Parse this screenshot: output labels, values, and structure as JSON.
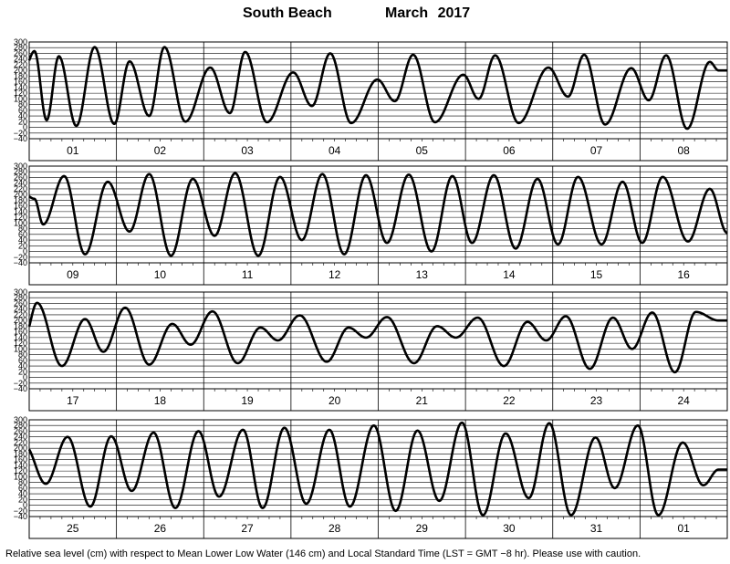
{
  "title": {
    "station": "South Beach",
    "month": "March",
    "year": "2017"
  },
  "footer": "Relative sea level (cm) with respect to Mean Lower Low Water (146 cm) and Local Standard Time (LST = GMT −8 hr). Please use with caution.",
  "chart_data": {
    "type": "line",
    "title": "South Beach March 2017",
    "xlabel": "",
    "ylabel": "",
    "ylim": [
      -40,
      300
    ],
    "yticks": [
      -40,
      -20,
      0,
      20,
      40,
      60,
      80,
      100,
      120,
      140,
      160,
      180,
      200,
      220,
      240,
      260,
      280,
      300
    ],
    "grid": true,
    "days_per_panel": 8,
    "panels": [
      {
        "day_labels": [
          "01",
          "02",
          "03",
          "04",
          "05",
          "06",
          "07",
          "08"
        ],
        "extrema": [
          [
            -0.1,
            210
          ],
          [
            0.12,
            268
          ],
          [
            0.4,
            25
          ],
          [
            0.68,
            250
          ],
          [
            1.08,
            5
          ],
          [
            1.5,
            282
          ],
          [
            1.95,
            12
          ],
          [
            2.3,
            232
          ],
          [
            2.75,
            40
          ],
          [
            3.1,
            282
          ],
          [
            3.58,
            20
          ],
          [
            4.15,
            210
          ],
          [
            4.6,
            50
          ],
          [
            4.95,
            265
          ],
          [
            5.45,
            18
          ],
          [
            6.05,
            193
          ],
          [
            6.48,
            75
          ],
          [
            6.9,
            260
          ],
          [
            7.38,
            15
          ],
          [
            7.98,
            168
          ],
          [
            8.38,
            92
          ],
          [
            8.8,
            255
          ],
          [
            9.3,
            18
          ],
          [
            9.95,
            185
          ],
          [
            10.3,
            100
          ],
          [
            10.68,
            253
          ],
          [
            11.22,
            15
          ],
          [
            11.9,
            210
          ],
          [
            12.35,
            108
          ],
          [
            12.72,
            255
          ],
          [
            13.2,
            10
          ],
          [
            13.8,
            208
          ],
          [
            14.2,
            95
          ],
          [
            14.6,
            253
          ],
          [
            15.08,
            -5
          ],
          [
            15.6,
            230
          ],
          [
            15.8,
            200
          ]
        ]
      },
      {
        "day_labels": [
          "09",
          "10",
          "11",
          "12",
          "13",
          "14",
          "15",
          "16"
        ],
        "extrema": [
          [
            -0.1,
            200
          ],
          [
            0.12,
            185
          ],
          [
            0.32,
            95
          ],
          [
            0.8,
            265
          ],
          [
            1.28,
            -10
          ],
          [
            1.8,
            245
          ],
          [
            2.3,
            70
          ],
          [
            2.75,
            272
          ],
          [
            3.25,
            -15
          ],
          [
            3.75,
            255
          ],
          [
            4.25,
            55
          ],
          [
            4.72,
            275
          ],
          [
            5.25,
            -15
          ],
          [
            5.75,
            262
          ],
          [
            6.25,
            40
          ],
          [
            6.72,
            272
          ],
          [
            7.22,
            -10
          ],
          [
            7.72,
            268
          ],
          [
            8.2,
            30
          ],
          [
            8.7,
            270
          ],
          [
            9.22,
            0
          ],
          [
            9.7,
            265
          ],
          [
            10.15,
            30
          ],
          [
            10.65,
            268
          ],
          [
            11.15,
            10
          ],
          [
            11.65,
            255
          ],
          [
            12.12,
            25
          ],
          [
            12.58,
            262
          ],
          [
            13.12,
            25
          ],
          [
            13.6,
            245
          ],
          [
            14.05,
            30
          ],
          [
            14.52,
            262
          ],
          [
            15.1,
            35
          ],
          [
            15.6,
            220
          ],
          [
            16.0,
            65
          ],
          [
            16.1,
            72
          ],
          [
            16.3,
            180
          ]
        ]
      },
      {
        "day_labels": [
          "17",
          "18",
          "19",
          "20",
          "21",
          "22",
          "23",
          "24"
        ],
        "extrema": [
          [
            -0.1,
            145
          ],
          [
            0.18,
            262
          ],
          [
            0.75,
            40
          ],
          [
            1.28,
            205
          ],
          [
            1.7,
            90
          ],
          [
            2.2,
            245
          ],
          [
            2.75,
            45
          ],
          [
            3.28,
            188
          ],
          [
            3.7,
            115
          ],
          [
            4.2,
            232
          ],
          [
            4.78,
            50
          ],
          [
            5.3,
            175
          ],
          [
            5.7,
            130
          ],
          [
            6.2,
            218
          ],
          [
            6.82,
            55
          ],
          [
            7.32,
            175
          ],
          [
            7.72,
            140
          ],
          [
            8.2,
            212
          ],
          [
            8.82,
            50
          ],
          [
            9.35,
            180
          ],
          [
            9.78,
            140
          ],
          [
            10.28,
            210
          ],
          [
            10.88,
            40
          ],
          [
            11.42,
            195
          ],
          [
            11.85,
            130
          ],
          [
            12.3,
            215
          ],
          [
            12.85,
            30
          ],
          [
            13.38,
            210
          ],
          [
            13.82,
            100
          ],
          [
            14.28,
            228
          ],
          [
            14.8,
            18
          ],
          [
            15.28,
            230
          ],
          [
            15.8,
            200
          ]
        ]
      },
      {
        "day_labels": [
          "25",
          "26",
          "27",
          "28",
          "29",
          "30",
          "31",
          "01"
        ],
        "extrema": [
          [
            -0.1,
            210
          ],
          [
            0.38,
            75
          ],
          [
            0.88,
            240
          ],
          [
            1.4,
            -5
          ],
          [
            1.88,
            242
          ],
          [
            2.35,
            50
          ],
          [
            2.85,
            255
          ],
          [
            3.35,
            -10
          ],
          [
            3.88,
            260
          ],
          [
            4.35,
            30
          ],
          [
            4.9,
            265
          ],
          [
            5.35,
            -10
          ],
          [
            5.85,
            272
          ],
          [
            6.35,
            5
          ],
          [
            6.88,
            265
          ],
          [
            7.35,
            -5
          ],
          [
            7.9,
            280
          ],
          [
            8.4,
            -20
          ],
          [
            8.9,
            262
          ],
          [
            9.4,
            15
          ],
          [
            9.92,
            290
          ],
          [
            10.4,
            -35
          ],
          [
            10.92,
            252
          ],
          [
            11.45,
            25
          ],
          [
            11.92,
            288
          ],
          [
            12.42,
            -35
          ],
          [
            12.98,
            238
          ],
          [
            13.42,
            60
          ],
          [
            13.95,
            280
          ],
          [
            14.42,
            -35
          ],
          [
            14.98,
            220
          ],
          [
            15.45,
            70
          ],
          [
            15.8,
            125
          ]
        ]
      }
    ]
  }
}
